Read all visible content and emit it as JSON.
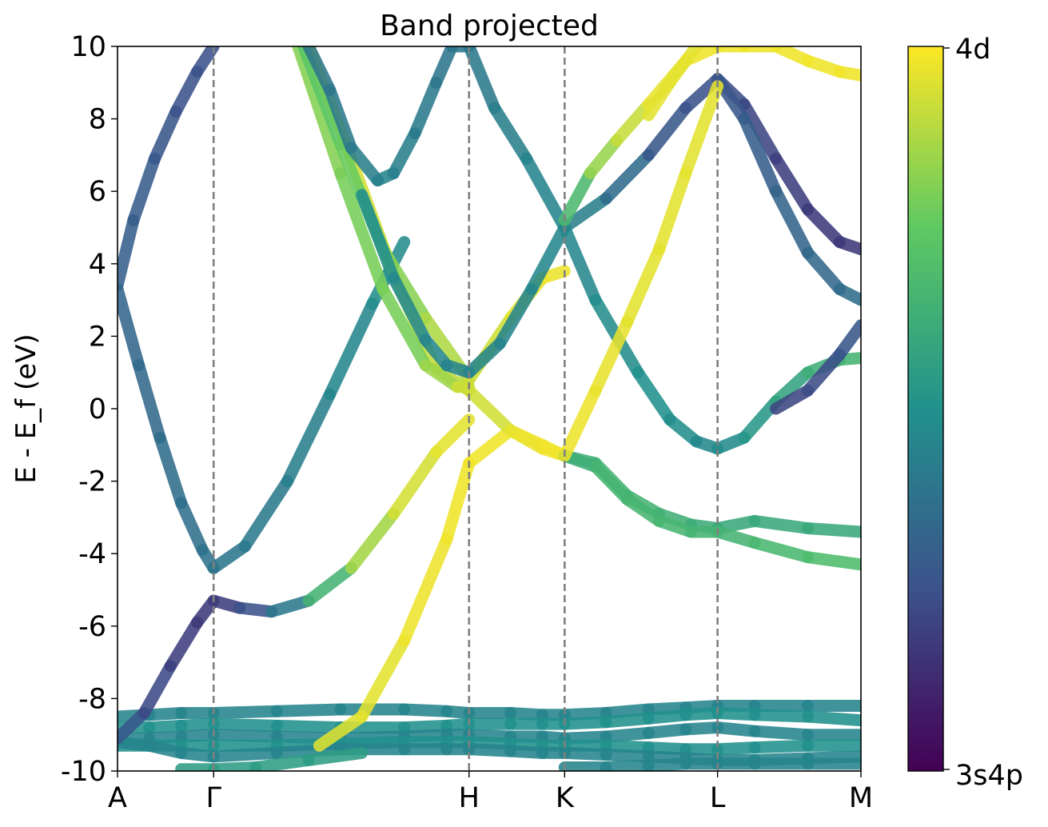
{
  "chart_data": {
    "type": "line",
    "title": "Band projected",
    "ylabel": "E - E_f (eV)",
    "xlabel": "",
    "ylim": [
      -10,
      10
    ],
    "yticks": [
      "-10",
      "-8",
      "-6",
      "-4",
      "-2",
      "0",
      "2",
      "4",
      "6",
      "8",
      "10"
    ],
    "kpath": {
      "labels": [
        "A",
        "Γ",
        "H",
        "K",
        "L",
        "M"
      ],
      "positions": [
        0,
        0.905,
        3.31,
        4.21,
        5.65,
        7.0
      ]
    },
    "colorbar": {
      "top_label": "4d",
      "bottom_label": "3s4p",
      "colormap": "viridis",
      "colors": [
        "#440154",
        "#3b528b",
        "#21918c",
        "#5ec962",
        "#fde725"
      ]
    },
    "series": [
      {
        "x": [
          0.0,
          0.3,
          0.6,
          0.905,
          1.5,
          2.1,
          2.7,
          3.1,
          3.31,
          3.7,
          4.0,
          4.21,
          4.6,
          5.0,
          5.35,
          5.65,
          6.0,
          6.5,
          7.0
        ],
        "y": [
          -8.5,
          -8.45,
          -8.4,
          -8.4,
          -8.35,
          -8.3,
          -8.3,
          -8.35,
          -8.4,
          -8.4,
          -8.45,
          -8.45,
          -8.4,
          -8.3,
          -8.25,
          -8.2,
          -8.2,
          -8.2,
          -8.2
        ],
        "proj": [
          0.45,
          0.45,
          0.45,
          0.45,
          0.45,
          0.45,
          0.45,
          0.45,
          0.45,
          0.45,
          0.45,
          0.45,
          0.45,
          0.45,
          0.45,
          0.45,
          0.45,
          0.45,
          0.45
        ]
      },
      {
        "x": [
          0.0,
          0.3,
          0.6,
          0.905,
          1.5,
          2.1,
          2.7,
          3.1,
          3.31,
          3.7,
          4.0,
          4.21,
          4.6,
          5.0,
          5.35,
          5.65,
          6.0,
          6.5,
          7.0
        ],
        "y": [
          -8.8,
          -8.8,
          -8.75,
          -8.7,
          -8.75,
          -8.8,
          -8.8,
          -8.75,
          -8.7,
          -8.7,
          -8.7,
          -8.7,
          -8.65,
          -8.55,
          -8.45,
          -8.4,
          -8.45,
          -8.5,
          -8.6
        ],
        "proj": [
          0.5,
          0.5,
          0.5,
          0.5,
          0.5,
          0.5,
          0.5,
          0.5,
          0.5,
          0.5,
          0.5,
          0.5,
          0.5,
          0.5,
          0.5,
          0.5,
          0.5,
          0.5,
          0.5
        ]
      },
      {
        "x": [
          0.0,
          0.3,
          0.6,
          0.905,
          1.5,
          2.1,
          2.7,
          3.1,
          3.31,
          3.7,
          4.0,
          4.21,
          4.6,
          5.0,
          5.35,
          5.65,
          6.0,
          6.5,
          7.0
        ],
        "y": [
          -9.1,
          -9.1,
          -9.05,
          -9.0,
          -9.05,
          -9.1,
          -9.05,
          -9.0,
          -9.0,
          -9.05,
          -9.05,
          -9.1,
          -9.05,
          -8.95,
          -8.85,
          -8.8,
          -8.9,
          -9.0,
          -9.0
        ],
        "proj": [
          0.45,
          0.45,
          0.45,
          0.45,
          0.45,
          0.45,
          0.45,
          0.45,
          0.45,
          0.45,
          0.45,
          0.45,
          0.45,
          0.45,
          0.45,
          0.45,
          0.45,
          0.45,
          0.45
        ]
      },
      {
        "x": [
          0.0,
          0.3,
          0.6,
          0.905,
          1.5,
          2.1,
          2.7,
          3.1,
          3.31,
          3.7,
          4.0,
          4.21,
          4.6,
          5.0,
          5.35,
          5.65,
          6.0,
          6.5,
          7.0
        ],
        "y": [
          -9.3,
          -9.3,
          -9.3,
          -9.3,
          -9.3,
          -9.25,
          -9.2,
          -9.2,
          -9.2,
          -9.25,
          -9.3,
          -9.3,
          -9.3,
          -9.35,
          -9.4,
          -9.4,
          -9.35,
          -9.3,
          -9.3
        ],
        "proj": [
          0.5,
          0.5,
          0.5,
          0.5,
          0.5,
          0.5,
          0.5,
          0.5,
          0.5,
          0.5,
          0.5,
          0.5,
          0.5,
          0.5,
          0.5,
          0.5,
          0.5,
          0.5,
          0.5
        ]
      },
      {
        "x": [
          0.0,
          0.3,
          0.6,
          0.905,
          1.5,
          2.1,
          2.7,
          3.1,
          3.31,
          3.7,
          4.0,
          4.21,
          4.6,
          5.0,
          5.35,
          5.65,
          6.0,
          6.5,
          7.0
        ],
        "y": [
          -9.2,
          -9.3,
          -9.5,
          -9.6,
          -9.5,
          -9.4,
          -9.4,
          -9.4,
          -9.4,
          -9.45,
          -9.5,
          -9.5,
          -9.55,
          -9.6,
          -9.65,
          -9.7,
          -9.7,
          -9.65,
          -9.6
        ],
        "proj": [
          0.45,
          0.45,
          0.45,
          0.45,
          0.45,
          0.45,
          0.45,
          0.45,
          0.45,
          0.45,
          0.45,
          0.45,
          0.45,
          0.45,
          0.45,
          0.45,
          0.45,
          0.45,
          0.45
        ]
      },
      {
        "x": [
          0.6,
          0.905,
          1.3,
          1.8,
          2.3
        ],
        "y": [
          -9.95,
          -9.95,
          -9.9,
          -9.7,
          -9.5
        ],
        "proj": [
          0.55,
          0.55,
          0.55,
          0.55,
          0.55
        ]
      },
      {
        "x": [
          4.21,
          4.6,
          5.0,
          5.35,
          5.65,
          6.0,
          6.5,
          7.0
        ],
        "y": [
          -9.9,
          -9.9,
          -9.85,
          -9.8,
          -9.8,
          -9.8,
          -9.8,
          -9.8
        ],
        "proj": [
          0.45,
          0.45,
          0.45,
          0.45,
          0.45,
          0.45,
          0.45,
          0.45
        ]
      },
      {
        "x": [
          0.0,
          0.15,
          0.35,
          0.55,
          0.75,
          0.905
        ],
        "y": [
          3.4,
          5.2,
          6.9,
          8.2,
          9.3,
          10.0
        ],
        "proj": [
          0.3,
          0.3,
          0.28,
          0.25,
          0.25,
          0.25
        ]
      },
      {
        "x": [
          0.0,
          0.2,
          0.4,
          0.6,
          0.8,
          0.905,
          1.2,
          1.6,
          2.0,
          2.4,
          2.7
        ],
        "y": [
          3.3,
          1.2,
          -0.8,
          -2.6,
          -3.9,
          -4.4,
          -3.8,
          -2.0,
          0.4,
          2.9,
          4.6
        ],
        "proj": [
          0.33,
          0.33,
          0.35,
          0.36,
          0.37,
          0.38,
          0.4,
          0.42,
          0.44,
          0.47,
          0.5
        ]
      },
      {
        "x": [
          0.0,
          0.25,
          0.5,
          0.75,
          0.905,
          1.15,
          1.45,
          1.8,
          2.2,
          2.6,
          3.0,
          3.31
        ],
        "y": [
          -9.1,
          -8.4,
          -7.1,
          -5.9,
          -5.3,
          -5.5,
          -5.6,
          -5.3,
          -4.4,
          -2.9,
          -1.2,
          -0.3
        ],
        "proj": [
          0.3,
          0.25,
          0.2,
          0.18,
          0.17,
          0.2,
          0.3,
          0.5,
          0.8,
          0.92,
          0.95,
          0.97
        ]
      },
      {
        "x": [
          1.9,
          2.3,
          2.7,
          3.1,
          3.31,
          3.7,
          4.0,
          4.21
        ],
        "y": [
          -9.3,
          -8.5,
          -6.4,
          -3.6,
          -1.5,
          -0.6,
          -1.0,
          -1.3
        ],
        "proj": [
          0.95,
          0.95,
          0.97,
          0.98,
          0.98,
          0.98,
          0.98,
          0.98
        ]
      },
      {
        "x": [
          1.8,
          2.2,
          2.6,
          3.0,
          3.31,
          3.7,
          4.0,
          4.21
        ],
        "y": [
          10.0,
          6.9,
          3.7,
          1.1,
          0.5,
          -0.6,
          -1.1,
          -1.3
        ],
        "proj": [
          0.98,
          0.95,
          0.92,
          0.9,
          0.9,
          0.96,
          0.98,
          0.98
        ]
      },
      {
        "x": [
          1.7,
          2.1,
          2.5,
          2.9,
          3.2,
          3.31
        ],
        "y": [
          10.0,
          6.5,
          3.3,
          1.2,
          0.6,
          0.6
        ],
        "proj": [
          0.82,
          0.8,
          0.78,
          0.8,
          0.9,
          0.95
        ]
      },
      {
        "x": [
          1.75,
          2.1,
          2.5,
          2.9,
          3.31,
          3.7,
          4.0,
          4.21
        ],
        "y": [
          10.0,
          7.3,
          4.4,
          2.5,
          0.8,
          2.5,
          3.6,
          3.8
        ],
        "proj": [
          0.72,
          0.75,
          0.78,
          0.85,
          0.9,
          0.95,
          0.97,
          0.98
        ]
      },
      {
        "x": [
          2.45,
          2.6,
          2.8,
          3.0,
          3.15,
          3.31,
          3.55,
          3.85,
          4.21
        ],
        "y": [
          6.3,
          6.5,
          7.6,
          9.0,
          10.0,
          10.0,
          8.3,
          6.9,
          5.0
        ],
        "proj": [
          0.45,
          0.44,
          0.42,
          0.4,
          0.38,
          0.4,
          0.42,
          0.44,
          0.46
        ]
      },
      {
        "x": [
          2.45,
          2.2,
          2.0,
          1.8
        ],
        "y": [
          6.3,
          7.2,
          8.8,
          10.0
        ],
        "proj": [
          0.44,
          0.42,
          0.4,
          0.38
        ]
      },
      {
        "x": [
          2.3,
          2.6,
          2.9,
          3.1,
          3.31,
          3.6,
          3.9,
          4.21,
          4.6,
          5.0,
          5.35,
          5.65
        ],
        "y": [
          5.9,
          3.6,
          1.9,
          1.2,
          1.0,
          1.8,
          3.3,
          5.0,
          5.8,
          7.0,
          8.3,
          9.1
        ],
        "proj": [
          0.5,
          0.48,
          0.46,
          0.45,
          0.45,
          0.45,
          0.45,
          0.46,
          0.4,
          0.3,
          0.25,
          0.25
        ]
      },
      {
        "x": [
          4.21,
          4.5,
          4.9,
          5.2,
          5.45,
          5.65,
          5.9,
          6.2,
          6.5,
          6.8,
          7.0
        ],
        "y": [
          5.0,
          3.0,
          1.0,
          -0.3,
          -0.9,
          -1.1,
          -0.8,
          0.2,
          1.0,
          1.35,
          1.4
        ],
        "proj": [
          0.45,
          0.47,
          0.5,
          0.5,
          0.48,
          0.46,
          0.5,
          0.55,
          0.6,
          0.65,
          0.65
        ]
      },
      {
        "x": [
          4.21,
          4.45,
          4.7,
          5.0,
          5.35,
          5.65,
          5.9,
          6.2,
          6.5,
          6.8,
          7.0
        ],
        "y": [
          5.2,
          6.5,
          7.4,
          8.4,
          9.6,
          10.0,
          10.0,
          10.0,
          9.6,
          9.3,
          9.2
        ],
        "proj": [
          0.55,
          0.8,
          0.88,
          0.95,
          0.98,
          0.98,
          0.98,
          0.98,
          0.98,
          0.98,
          0.98
        ]
      },
      {
        "x": [
          5.65,
          5.9,
          6.2,
          6.5,
          6.8,
          7.0
        ],
        "y": [
          9.1,
          8.4,
          6.9,
          5.5,
          4.6,
          4.4
        ],
        "proj": [
          0.25,
          0.22,
          0.2,
          0.18,
          0.17,
          0.17
        ]
      },
      {
        "x": [
          5.65,
          5.9,
          6.2,
          6.5,
          6.8,
          7.0
        ],
        "y": [
          9.1,
          8.0,
          6.0,
          4.3,
          3.3,
          3.0
        ],
        "proj": [
          0.25,
          0.28,
          0.31,
          0.33,
          0.35,
          0.36
        ]
      },
      {
        "x": [
          6.2,
          6.5,
          6.8,
          7.0
        ],
        "y": [
          0.0,
          0.5,
          1.5,
          2.3
        ],
        "proj": [
          0.2,
          0.22,
          0.25,
          0.28
        ]
      },
      {
        "x": [
          4.21,
          4.5,
          4.8,
          5.1,
          5.4,
          5.65,
          6.0,
          6.5,
          7.0
        ],
        "y": [
          -1.3,
          -1.5,
          -2.4,
          -2.9,
          -3.2,
          -3.3,
          -3.1,
          -3.3,
          -3.4
        ],
        "proj": [
          0.6,
          0.65,
          0.65,
          0.65,
          0.62,
          0.6,
          0.6,
          0.6,
          0.6
        ]
      },
      {
        "x": [
          4.21,
          4.5,
          4.8,
          5.1,
          5.4,
          5.65,
          6.0,
          6.5,
          7.0
        ],
        "y": [
          -1.3,
          -1.6,
          -2.5,
          -3.1,
          -3.4,
          -3.4,
          -3.7,
          -4.1,
          -4.3
        ],
        "proj": [
          0.6,
          0.65,
          0.66,
          0.66,
          0.66,
          0.64,
          0.66,
          0.68,
          0.7
        ]
      },
      {
        "x": [
          4.21,
          4.5,
          4.8,
          5.1,
          5.35,
          5.65
        ],
        "y": [
          -1.3,
          0.5,
          2.4,
          4.4,
          6.5,
          8.9
        ],
        "proj": [
          0.98,
          0.97,
          0.96,
          0.96,
          0.96,
          0.96
        ]
      },
      {
        "x": [
          5.0,
          5.2,
          5.45
        ],
        "y": [
          8.1,
          9.0,
          10.0
        ],
        "proj": [
          0.96,
          0.96,
          0.96
        ]
      }
    ]
  }
}
